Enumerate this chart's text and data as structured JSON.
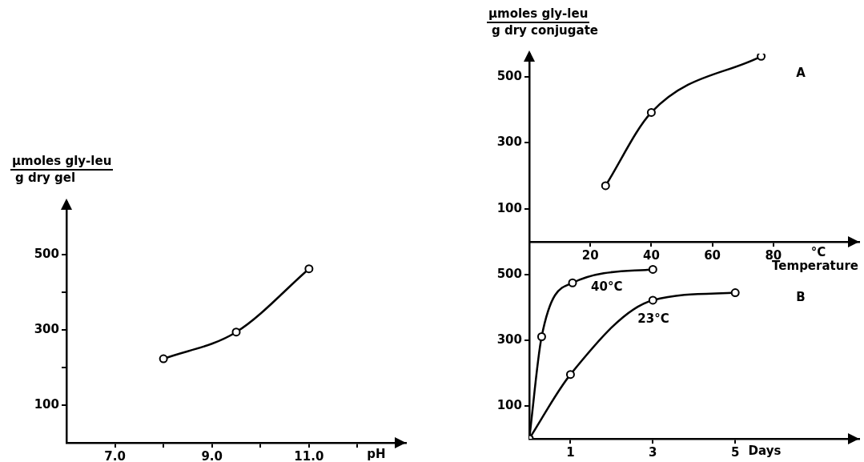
{
  "chart_data": [
    {
      "type": "line",
      "ylabel": "µmoles gly-leu\ng dry gel",
      "xlabel": "pH",
      "x": [
        8.0,
        9.5,
        11.0
      ],
      "series": [
        {
          "color": "#000000",
          "values": [
            223,
            294,
            462
          ]
        }
      ],
      "xlim": [
        6,
        13
      ],
      "ylim": [
        0,
        640
      ],
      "xticks": [
        {
          "value": 7,
          "label": "7.0"
        },
        {
          "value": 8,
          "label": null
        },
        {
          "value": 9,
          "label": "9.0"
        },
        {
          "value": 10,
          "label": null
        },
        {
          "value": 11,
          "label": "11.0"
        },
        {
          "value": 12,
          "label": null
        }
      ],
      "yticks": [
        100,
        {
          "value": 200,
          "label": null
        },
        300,
        {
          "value": 400,
          "label": null
        },
        500
      ],
      "marker": "circle"
    },
    {
      "type": "line",
      "ylabel": "µmoles gly-leu\ng dry conjugate",
      "xlabel": "Temperature",
      "annotations": [
        "°C",
        "A"
      ],
      "x": [
        25,
        40,
        76
      ],
      "series": [
        {
          "color": "#000000",
          "values": [
            170,
            392,
            562
          ]
        }
      ],
      "xlim": [
        0,
        108
      ],
      "ylim": [
        0,
        570
      ],
      "xticks": [
        20,
        40,
        60,
        80
      ],
      "yticks": [
        100,
        300,
        500
      ],
      "marker": "circle"
    },
    {
      "type": "line",
      "xlabel": "Days",
      "annotations": [
        "B"
      ],
      "series": [
        {
          "name": "40°C",
          "color": "#000000",
          "x": [
            0,
            0.3,
            1.05,
            3
          ],
          "values": [
            0,
            311,
            475,
            516
          ]
        },
        {
          "name": "23°C",
          "color": "#000000",
          "x": [
            0,
            1,
            3,
            5
          ],
          "values": [
            0,
            196,
            422,
            445
          ]
        }
      ],
      "xlim": [
        0,
        8
      ],
      "ylim": [
        0,
        600
      ],
      "xticks": [
        1,
        3,
        5
      ],
      "yticks": [
        100,
        300,
        500
      ],
      "marker": "circle"
    }
  ]
}
